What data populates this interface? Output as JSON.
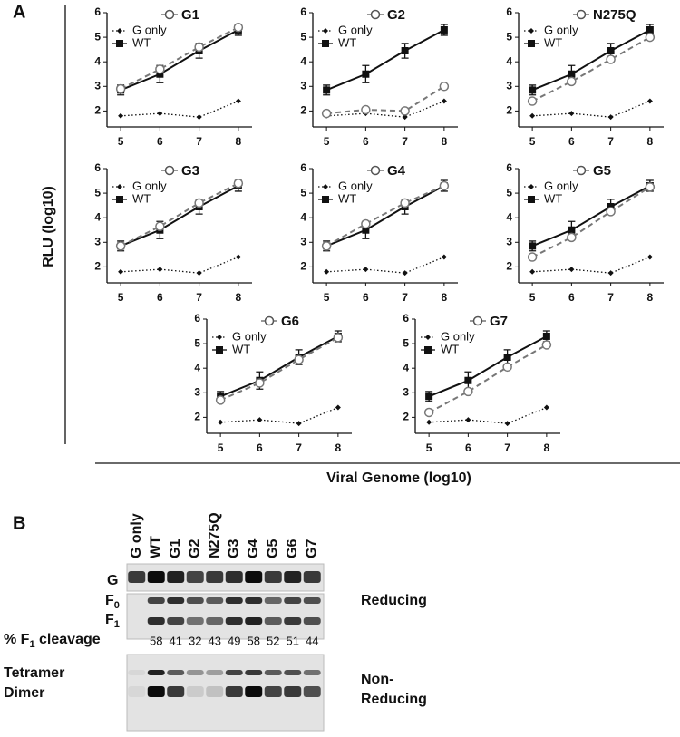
{
  "panel_labels": [
    "A",
    "B"
  ],
  "y_label": "RLU (log10)",
  "x_label": "Viral Genome (log10)",
  "chart_data": [
    {
      "type": "line",
      "x": [
        5,
        6,
        7,
        8
      ],
      "xlim": [
        4.65,
        8.35
      ],
      "xticks": [
        5,
        6,
        7,
        8
      ],
      "ylim": [
        1.35,
        6
      ],
      "yticks": [
        2,
        3,
        4,
        5,
        6
      ],
      "series": [
        {
          "name": "G only",
          "color": "#111111",
          "marker": "diamond",
          "dash": "dotted",
          "values": [
            1.8,
            1.9,
            1.75,
            2.4
          ]
        },
        {
          "name": "WT",
          "color": "#111111",
          "marker": "square",
          "dash": "solid",
          "values": [
            2.85,
            3.5,
            4.45,
            5.3
          ],
          "errors": [
            0.2,
            0.35,
            0.3,
            0.22
          ]
        },
        {
          "name": "G1",
          "color": "#777777",
          "marker": "circle",
          "dash": "dashed",
          "values": [
            2.9,
            3.7,
            4.6,
            5.4
          ]
        }
      ]
    },
    {
      "type": "line",
      "x": [
        5,
        6,
        7,
        8
      ],
      "xlim": [
        4.65,
        8.35
      ],
      "xticks": [
        5,
        6,
        7,
        8
      ],
      "ylim": [
        1.35,
        6
      ],
      "yticks": [
        2,
        3,
        4,
        5,
        6
      ],
      "series": [
        {
          "name": "G only",
          "color": "#111111",
          "marker": "diamond",
          "dash": "dotted",
          "values": [
            1.8,
            1.9,
            1.75,
            2.4
          ]
        },
        {
          "name": "WT",
          "color": "#111111",
          "marker": "square",
          "dash": "solid",
          "values": [
            2.85,
            3.5,
            4.45,
            5.3
          ],
          "errors": [
            0.2,
            0.35,
            0.3,
            0.22
          ]
        },
        {
          "name": "G2",
          "color": "#777777",
          "marker": "circle",
          "dash": "dashed",
          "values": [
            1.9,
            2.05,
            2.0,
            3.0
          ]
        }
      ]
    },
    {
      "type": "line",
      "x": [
        5,
        6,
        7,
        8
      ],
      "xlim": [
        4.65,
        8.35
      ],
      "xticks": [
        5,
        6,
        7,
        8
      ],
      "ylim": [
        1.35,
        6
      ],
      "yticks": [
        2,
        3,
        4,
        5,
        6
      ],
      "series": [
        {
          "name": "G only",
          "color": "#111111",
          "marker": "diamond",
          "dash": "dotted",
          "values": [
            1.8,
            1.9,
            1.75,
            2.4
          ]
        },
        {
          "name": "WT",
          "color": "#111111",
          "marker": "square",
          "dash": "solid",
          "values": [
            2.85,
            3.5,
            4.45,
            5.3
          ],
          "errors": [
            0.2,
            0.35,
            0.3,
            0.22
          ]
        },
        {
          "name": "N275Q",
          "color": "#777777",
          "marker": "circle",
          "dash": "dashed",
          "values": [
            2.4,
            3.2,
            4.1,
            5.0
          ]
        }
      ]
    },
    {
      "type": "line",
      "x": [
        5,
        6,
        7,
        8
      ],
      "xlim": [
        4.65,
        8.35
      ],
      "xticks": [
        5,
        6,
        7,
        8
      ],
      "ylim": [
        1.35,
        6
      ],
      "yticks": [
        2,
        3,
        4,
        5,
        6
      ],
      "series": [
        {
          "name": "G only",
          "color": "#111111",
          "marker": "diamond",
          "dash": "dotted",
          "values": [
            1.8,
            1.9,
            1.75,
            2.4
          ]
        },
        {
          "name": "WT",
          "color": "#111111",
          "marker": "square",
          "dash": "solid",
          "values": [
            2.85,
            3.5,
            4.45,
            5.3
          ],
          "errors": [
            0.2,
            0.35,
            0.3,
            0.22
          ]
        },
        {
          "name": "G3",
          "color": "#777777",
          "marker": "circle",
          "dash": "dashed",
          "values": [
            2.85,
            3.65,
            4.6,
            5.4
          ]
        }
      ]
    },
    {
      "type": "line",
      "x": [
        5,
        6,
        7,
        8
      ],
      "xlim": [
        4.65,
        8.35
      ],
      "xticks": [
        5,
        6,
        7,
        8
      ],
      "ylim": [
        1.35,
        6
      ],
      "yticks": [
        2,
        3,
        4,
        5,
        6
      ],
      "series": [
        {
          "name": "G only",
          "color": "#111111",
          "marker": "diamond",
          "dash": "dotted",
          "values": [
            1.8,
            1.9,
            1.75,
            2.4
          ]
        },
        {
          "name": "WT",
          "color": "#111111",
          "marker": "square",
          "dash": "solid",
          "values": [
            2.85,
            3.5,
            4.45,
            5.3
          ],
          "errors": [
            0.2,
            0.35,
            0.3,
            0.22
          ]
        },
        {
          "name": "G4",
          "color": "#777777",
          "marker": "circle",
          "dash": "dashed",
          "values": [
            2.85,
            3.75,
            4.6,
            5.3
          ]
        }
      ]
    },
    {
      "type": "line",
      "x": [
        5,
        6,
        7,
        8
      ],
      "xlim": [
        4.65,
        8.35
      ],
      "xticks": [
        5,
        6,
        7,
        8
      ],
      "ylim": [
        1.35,
        6
      ],
      "yticks": [
        2,
        3,
        4,
        5,
        6
      ],
      "series": [
        {
          "name": "G only",
          "color": "#111111",
          "marker": "diamond",
          "dash": "dotted",
          "values": [
            1.8,
            1.9,
            1.75,
            2.4
          ]
        },
        {
          "name": "WT",
          "color": "#111111",
          "marker": "square",
          "dash": "solid",
          "values": [
            2.85,
            3.5,
            4.45,
            5.3
          ],
          "errors": [
            0.2,
            0.35,
            0.3,
            0.22
          ]
        },
        {
          "name": "G5",
          "color": "#777777",
          "marker": "circle",
          "dash": "dashed",
          "values": [
            2.4,
            3.2,
            4.25,
            5.25
          ]
        }
      ]
    },
    {
      "type": "line",
      "x": [
        5,
        6,
        7,
        8
      ],
      "xlim": [
        4.65,
        8.35
      ],
      "xticks": [
        5,
        6,
        7,
        8
      ],
      "ylim": [
        1.35,
        6
      ],
      "yticks": [
        2,
        3,
        4,
        5,
        6
      ],
      "series": [
        {
          "name": "G only",
          "color": "#111111",
          "marker": "diamond",
          "dash": "dotted",
          "values": [
            1.8,
            1.9,
            1.75,
            2.4
          ]
        },
        {
          "name": "WT",
          "color": "#111111",
          "marker": "square",
          "dash": "solid",
          "values": [
            2.85,
            3.5,
            4.45,
            5.3
          ],
          "errors": [
            0.2,
            0.35,
            0.3,
            0.22
          ]
        },
        {
          "name": "G6",
          "color": "#777777",
          "marker": "circle",
          "dash": "dashed",
          "values": [
            2.7,
            3.4,
            4.35,
            5.25
          ]
        }
      ]
    },
    {
      "type": "line",
      "x": [
        5,
        6,
        7,
        8
      ],
      "xlim": [
        4.65,
        8.35
      ],
      "xticks": [
        5,
        6,
        7,
        8
      ],
      "ylim": [
        1.35,
        6
      ],
      "yticks": [
        2,
        3,
        4,
        5,
        6
      ],
      "series": [
        {
          "name": "G only",
          "color": "#111111",
          "marker": "diamond",
          "dash": "dotted",
          "values": [
            1.8,
            1.9,
            1.75,
            2.4
          ]
        },
        {
          "name": "WT",
          "color": "#111111",
          "marker": "square",
          "dash": "solid",
          "values": [
            2.85,
            3.5,
            4.45,
            5.3
          ],
          "errors": [
            0.2,
            0.35,
            0.3,
            0.22
          ]
        },
        {
          "name": "G7",
          "color": "#777777",
          "marker": "circle",
          "dash": "dashed",
          "values": [
            2.2,
            3.05,
            4.05,
            4.95
          ]
        }
      ]
    }
  ],
  "blot": {
    "lanes": [
      "G only",
      "WT",
      "G1",
      "G2",
      "N275Q",
      "G3",
      "G4",
      "G5",
      "G6",
      "G7"
    ],
    "g_label": "G",
    "f0_label": {
      "main": "F",
      "sub": "0"
    },
    "f1_label": {
      "main": "F",
      "sub": "1"
    },
    "cleavage_label": {
      "before": "% F",
      "sub": "1",
      "after": " cleavage"
    },
    "cleavage": [
      58,
      41,
      32,
      43,
      49,
      58,
      52,
      51,
      44
    ],
    "tetramer_label": "Tetramer",
    "dimer_label": "Dimer",
    "reducing_label": "Reducing",
    "non_reducing_label": [
      "Non-",
      "Reducing"
    ]
  }
}
